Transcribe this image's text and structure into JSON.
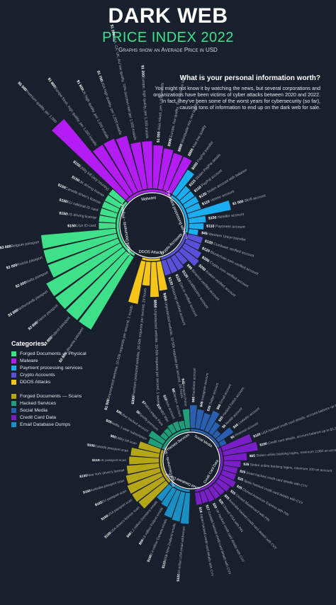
{
  "header": {
    "title": "DARK WEB",
    "subtitle": "PRICE INDEX 2022",
    "note": "Graphs show an Average Price in USD"
  },
  "intro": {
    "heading": "What is your personal information worth?",
    "text": "You might not know it by watching the news, but several corporations and organizations have been victims of cyber attacks between 2020 and 2022. In fact, they've been some of the worst years for cybersecurity (so far), causing tons of information to end up on the dark web for sale."
  },
  "legend": {
    "title": "Categories:",
    "groups": [
      [
        {
          "label": "Forged Documents — Physical",
          "color": "#3fe08a"
        },
        {
          "label": "Malware",
          "color": "#b31cf2"
        },
        {
          "label": "Payment processing services",
          "color": "#1aaef0"
        },
        {
          "label": "Crypto Accounts",
          "color": "#5a4fd8"
        },
        {
          "label": "DDOS Attacks",
          "color": "#f5c518"
        }
      ],
      [
        {
          "label": "Forged Documents — Scans",
          "color": "#b5a519"
        },
        {
          "label": "Hacked Services",
          "color": "#1f9e79"
        },
        {
          "label": "Social Media",
          "color": "#2a5fb0"
        },
        {
          "label": "Credit Card Data",
          "color": "#7a1fc8"
        },
        {
          "label": "Email Database Dumps",
          "color": "#1a8fc4"
        }
      ]
    ]
  },
  "chart_data": [
    {
      "type": "radial-bar",
      "unit": "USD",
      "categories": [
        {
          "name": "Forged Documents - Physical",
          "color": "#3fe08a",
          "items": [
            {
              "label": "Lithuania passport",
              "value": 3800
            },
            {
              "label": "Poland passport",
              "value": 3800
            },
            {
              "label": "France passport",
              "value": 3800
            },
            {
              "label": "Netherlands passport",
              "value": 3800
            },
            {
              "label": "Malta passport",
              "value": 3000
            },
            {
              "label": "Russia passport",
              "value": 3000
            },
            {
              "label": "Belgium passport",
              "value": 3000
            },
            {
              "label": "USA ID card",
              "value": 150
            },
            {
              "label": "US driving license",
              "value": 150
            },
            {
              "label": "EU national ID card",
              "value": 150
            },
            {
              "label": "Canada driver's license",
              "value": 150
            },
            {
              "label": "UK driving license",
              "value": 150
            },
            {
              "label": "Utility bill (any country)",
              "value": 150
            }
          ]
        },
        {
          "name": "Malware",
          "color": "#b31cf2",
          "items": [
            {
              "label": "Premium quality, per 1,000",
              "value": 5500
            },
            {
              "label": "Europe fresh, high quality, per 1,000 installs",
              "value": 1800
            },
            {
              "label": "UK high quality, per 1,000 installs",
              "value": 1800
            },
            {
              "label": "USA high quality, per 1,000 installs",
              "value": 1700
            },
            {
              "label": "USA, CA, UK, AU low quality, 70% success rate per 1,000 installs",
              "value": 1200
            },
            {
              "label": "Europe, high quality, per 1,000 installs",
              "value": 1200
            },
            {
              "label": "Asia mixed, per 1,000 installs",
              "value": 1000
            },
            {
              "label": "Europe, low quality, 70% success rate",
              "value": 900
            },
            {
              "label": "Worldwide mix, low quality",
              "value": 800
            },
            {
              "label": "Asia low quality",
              "value": 800
            }
          ]
        },
        {
          "name": "Payment processing services",
          "color": "#1aaef0",
          "items": [
            {
              "label": "PayPal transfer",
              "value": 450
            },
            {
              "label": "Stolen PayPal details",
              "value": 115
            },
            {
              "label": "PayPal account",
              "value": 110
            },
            {
              "label": "Stolen account with balance",
              "value": 120
            },
            {
              "label": "Venmo account",
              "value": 110
            },
            {
              "label": "Skrill account",
              "value": 1000
            },
            {
              "label": "Neteller account",
              "value": 150
            },
            {
              "label": "Payoneer account",
              "value": 110
            },
            {
              "label": "Western Union transfer",
              "value": 45
            }
          ]
        },
        {
          "name": "Crypto Accounts",
          "color": "#5a4fd8",
          "items": [
            {
              "label": "Coinbase verified account",
              "value": 120
            },
            {
              "label": "Blockchain.com verified account",
              "value": 120
            },
            {
              "label": "Crypto.com verified account",
              "value": 200
            },
            {
              "label": "Kraken verified account",
              "value": 250
            },
            {
              "label": "Binance verified account",
              "value": 90
            },
            {
              "label": "LocalBitcoins account",
              "value": 120
            },
            {
              "label": "Cex.io verified account",
              "value": 120
            },
            {
              "label": "Bitstamp verified account",
              "value": 120
            }
          ]
        },
        {
          "name": "DDOS Attacks",
          "color": "#f5c518",
          "items": [
            {
              "label": "Unprotected website, 10-50k requests per second, 24 hours",
              "value": 450
            },
            {
              "label": "Unprotected website, 10-50k requests per second, 1 week",
              "value": 650
            },
            {
              "label": "Premium protected website, 20-50k requests per second, 24 hours",
              "value": 300
            },
            {
              "label": "Unprotected website, 10-50k requests per second, 1 month",
              "value": 1000
            }
          ]
        }
      ]
    },
    {
      "type": "radial-bar",
      "unit": "USD",
      "categories": [
        {
          "name": "Email Database Dumps",
          "color": "#1a8fc4",
          "items": [
            {
              "label": "10 million USA email addresses",
              "value": 120
            },
            {
              "label": "600k New Zealand emails",
              "value": 110
            },
            {
              "label": "2.4 million Canada emails",
              "value": 100
            },
            {
              "label": "4.8 million Poland emails",
              "value": 50
            },
            {
              "label": "1.2 million Germany emails",
              "value": 40
            }
          ]
        },
        {
          "name": "Forged Documents - Scans",
          "color": "#b5a519",
          "items": [
            {
              "label": "USA driver's license scan",
              "value": 150
            },
            {
              "label": "USA passport scan",
              "value": 160
            },
            {
              "label": "EU passport scan",
              "value": 165
            },
            {
              "label": "Australia passport scan",
              "value": 150
            },
            {
              "label": "New York driver's license",
              "value": 130
            },
            {
              "label": "UK passport scan",
              "value": 110
            },
            {
              "label": "Canada passport scan",
              "value": 100
            },
            {
              "label": "Utility bill scan",
              "value": 60
            }
          ]
        },
        {
          "name": "Hacked Services",
          "color": "#1f9e79",
          "items": [
            {
              "label": "Netflix 1-year subscription",
              "value": 25
            },
            {
              "label": "Uber hacked account",
              "value": 35
            },
            {
              "label": "Spotify premium",
              "value": 6
            },
            {
              "label": "NBA League Pass",
              "value": 7
            },
            {
              "label": "HBO Max",
              "value": 10
            },
            {
              "label": "Hulu account",
              "value": 10
            },
            {
              "label": "Disney+ account",
              "value": 8
            },
            {
              "label": "Amazon Prime",
              "value": 45
            }
          ]
        },
        {
          "name": "Social Media",
          "color": "#2a5fb0",
          "items": [
            {
              "label": "Facebook account",
              "value": 65
            },
            {
              "label": "Instagram account",
              "value": 45
            },
            {
              "label": "Twitter account",
              "value": 35
            },
            {
              "label": "Gmail account",
              "value": 60
            },
            {
              "label": "Hacked Twitch account",
              "value": 20
            },
            {
              "label": "Reddit account",
              "value": 6
            },
            {
              "label": "LinkedIn account",
              "value": 40
            },
            {
              "label": "Pinterest account",
              "value": 5
            }
          ]
        },
        {
          "name": "Credit Card Data",
          "color": "#7a1fc8",
          "items": [
            {
              "label": "USA hacked credit card details, account balance up to $5,000",
              "value": 120
            },
            {
              "label": "Credit card details, account balance up to $1,000",
              "value": 150
            },
            {
              "label": "Stolen online banking logins, minimum 2,000 on account",
              "value": 65
            },
            {
              "label": "Stolen online banking logins, minimum 100 on account",
              "value": 35
            },
            {
              "label": "Israel hacked credit card details with CVV",
              "value": 25
            },
            {
              "label": "Spain hacked credit card details with CVV",
              "value": 25
            },
            {
              "label": "Cloned American Express with PIN",
              "value": 35
            },
            {
              "label": "Cloned Mastercard with PIN",
              "value": 25
            },
            {
              "label": "Australia hacked credit card details with CVV",
              "value": 20
            },
            {
              "label": "Cloned VISA with PIN",
              "value": 20
            },
            {
              "label": "UK hacked credit card details with CVV",
              "value": 20
            },
            {
              "label": "Canada hacked credit card details with CVV",
              "value": 17
            },
            {
              "label": "Japan hacked credit card details with CVV",
              "value": 18
            }
          ]
        }
      ]
    }
  ]
}
